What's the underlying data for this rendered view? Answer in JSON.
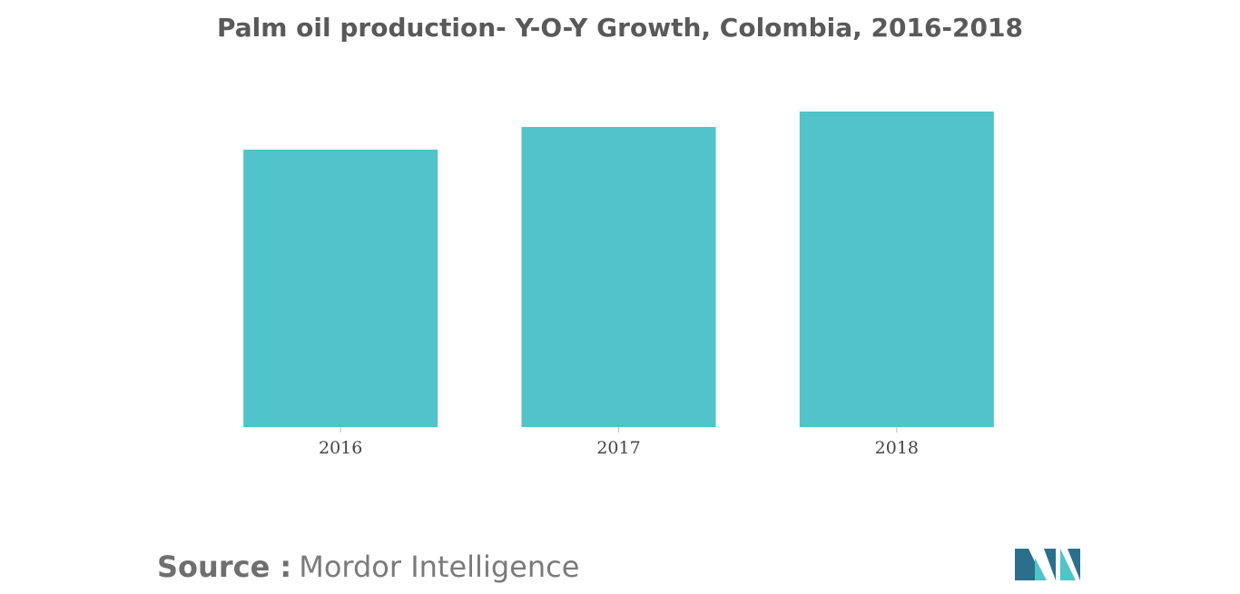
{
  "chart_data": {
    "type": "bar",
    "title": "Palm oil production- Y-O-Y Growth, Colombia, 2016-2018",
    "categories": [
      "2016",
      "2017",
      "2018"
    ],
    "values": [
      306,
      331,
      348
    ],
    "color": "#51c3ca",
    "source_label": "Source :",
    "source": "Mordor Intelligence"
  }
}
